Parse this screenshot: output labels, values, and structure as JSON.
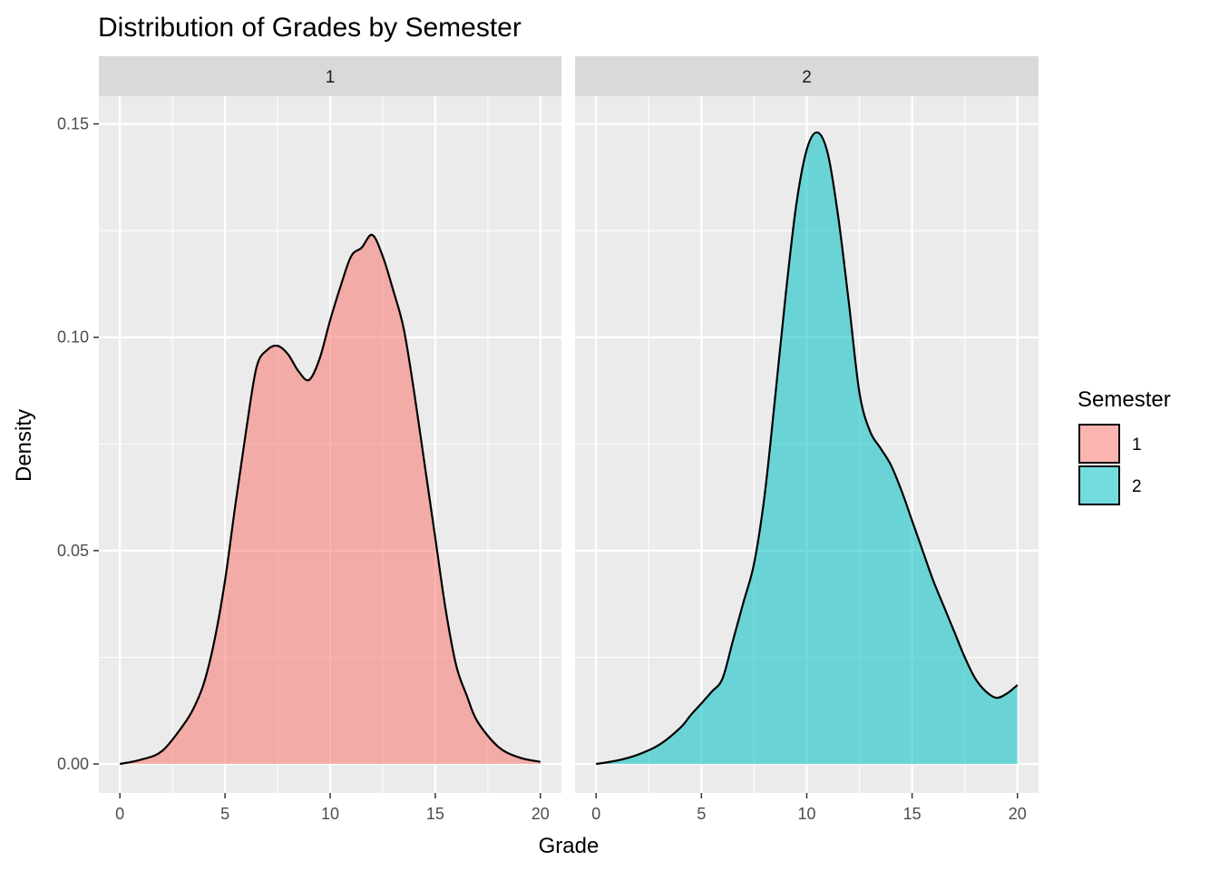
{
  "chart_data": {
    "type": "area",
    "title": "Distribution of Grades by Semester",
    "xlabel": "Grade",
    "ylabel": "Density",
    "xlim": [
      -1,
      21
    ],
    "ylim": [
      -0.0068,
      0.1565
    ],
    "x_ticks": [
      0,
      5,
      10,
      15,
      20
    ],
    "x_tick_labels": [
      "0",
      "5",
      "10",
      "15",
      "20"
    ],
    "y_ticks": [
      0,
      0.05,
      0.1,
      0.15
    ],
    "y_tick_labels": [
      "0.00",
      "0.05",
      "0.10",
      "0.15"
    ],
    "grid": true,
    "legend": {
      "title": "Semester",
      "position": "right",
      "entries": [
        {
          "label": "1",
          "color": "#F8766D"
        },
        {
          "label": "2",
          "color": "#00BFC4"
        }
      ]
    },
    "facets": [
      {
        "label": "1",
        "color": "#F8766D",
        "x": [
          0,
          1,
          2,
          3,
          3.5,
          4,
          4.5,
          5,
          5.5,
          6,
          6.5,
          7,
          7.5,
          8,
          8.5,
          9,
          9.5,
          10,
          10.5,
          11,
          11.5,
          12,
          12.5,
          13,
          13.5,
          14,
          14.5,
          15,
          15.5,
          16,
          16.5,
          17,
          18,
          19,
          20
        ],
        "y": [
          0,
          0.001,
          0.003,
          0.009,
          0.013,
          0.019,
          0.029,
          0.043,
          0.061,
          0.078,
          0.093,
          0.097,
          0.098,
          0.096,
          0.092,
          0.09,
          0.095,
          0.104,
          0.112,
          0.119,
          0.121,
          0.124,
          0.119,
          0.111,
          0.102,
          0.087,
          0.07,
          0.053,
          0.036,
          0.023,
          0.016,
          0.01,
          0.004,
          0.0015,
          0.0005
        ]
      },
      {
        "label": "2",
        "color": "#00BFC4",
        "x": [
          0,
          1,
          2,
          3,
          4,
          4.5,
          5,
          5.5,
          6,
          6.5,
          7,
          7.5,
          8,
          8.5,
          9,
          9.5,
          10,
          10.5,
          11,
          11.5,
          12,
          12.5,
          13,
          13.5,
          14,
          14.5,
          15,
          15.5,
          16,
          16.5,
          17,
          17.5,
          18,
          18.5,
          19,
          19.5,
          20
        ],
        "y": [
          0,
          0.0008,
          0.0022,
          0.0045,
          0.0085,
          0.0115,
          0.0142,
          0.017,
          0.02,
          0.029,
          0.038,
          0.047,
          0.063,
          0.086,
          0.11,
          0.131,
          0.144,
          0.148,
          0.143,
          0.128,
          0.108,
          0.087,
          0.078,
          0.074,
          0.07,
          0.064,
          0.057,
          0.05,
          0.043,
          0.037,
          0.031,
          0.025,
          0.02,
          0.017,
          0.0155,
          0.0165,
          0.0185
        ]
      }
    ]
  }
}
